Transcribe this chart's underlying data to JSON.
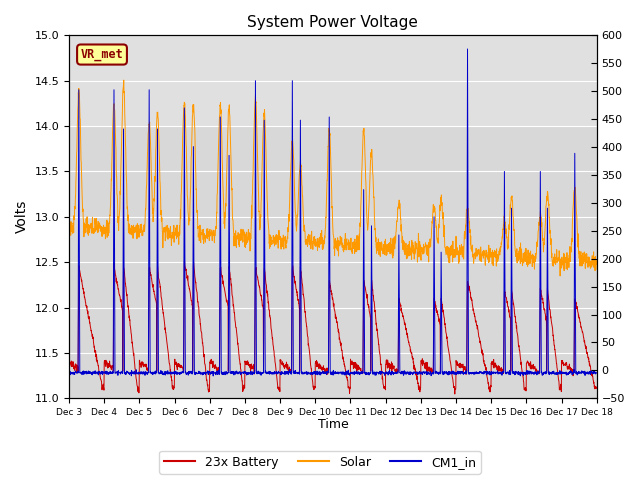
{
  "title": "System Power Voltage",
  "xlabel": "Time",
  "ylabel": "Volts",
  "left_ylim": [
    11.0,
    15.0
  ],
  "right_ylim": [
    -50,
    600
  ],
  "right_yticks": [
    -50,
    0,
    50,
    100,
    150,
    200,
    250,
    300,
    350,
    400,
    450,
    500,
    550,
    600
  ],
  "left_yticks": [
    11.0,
    11.5,
    12.0,
    12.5,
    13.0,
    13.5,
    14.0,
    14.5,
    15.0
  ],
  "shaded_region_lower": 14.0,
  "shaded_color": "#e0e0e0",
  "bg_color": "#d8d8d8",
  "vr_met_label": "VR_met",
  "vr_met_fg": "#8B0000",
  "vr_met_bg": "#ffff99",
  "vr_met_edge": "#8B0000",
  "line_battery_color": "#cc0000",
  "line_solar_color": "#ff9900",
  "line_cm1_color": "#0000cc",
  "legend_labels": [
    "23x Battery",
    "Solar",
    "CM1_in"
  ],
  "xtick_labels": [
    "Dec 3",
    "Dec 4",
    "Dec 5",
    "Dec 6",
    "Dec 7",
    "Dec 8",
    "Dec 9",
    "Dec 10",
    "Dec 11",
    "Dec 12",
    "Dec 13",
    "Dec 14",
    "Dec 15",
    "Dec 16",
    "Dec 17",
    "Dec 18"
  ],
  "figsize": [
    6.4,
    4.8
  ],
  "dpi": 100
}
